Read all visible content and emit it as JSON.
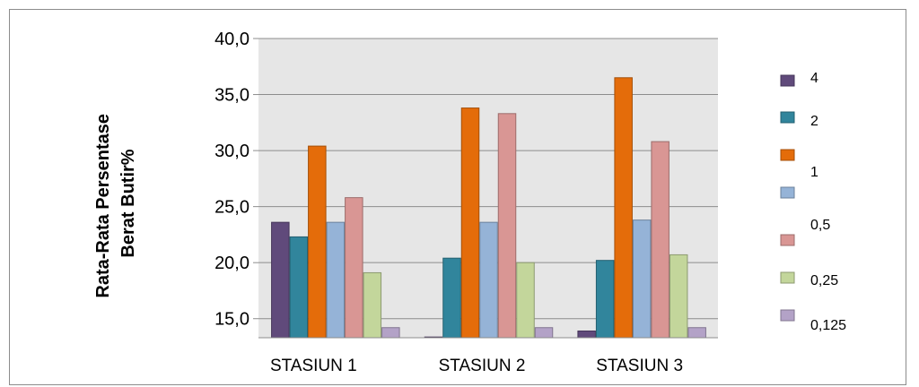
{
  "chart_data": {
    "type": "bar",
    "ylabel": "Rata-Rata Persentase Berat Butir%",
    "ylabel_lines": [
      "Rata-Rata Persentase",
      "Berat Butir%"
    ],
    "xlabel": "",
    "categories": [
      "STASIUN 1",
      "STASIUN 2",
      "STASIUN 3"
    ],
    "y_ticks": [
      {
        "value": 15,
        "label": "15,0"
      },
      {
        "value": 20,
        "label": "20,0"
      },
      {
        "value": 25,
        "label": "25,0"
      },
      {
        "value": 30,
        "label": "30,0"
      },
      {
        "value": 35,
        "label": "35,0"
      },
      {
        "value": 40,
        "label": "40,0"
      }
    ],
    "ylim": [
      13.3,
      40.0
    ],
    "grid": true,
    "legend_position": "right",
    "series": [
      {
        "name": "4",
        "color": "#604a7b",
        "values": [
          23.6,
          13.3,
          13.9
        ]
      },
      {
        "name": "2",
        "color": "#31859c",
        "values": [
          22.3,
          20.4,
          20.2
        ]
      },
      {
        "name": "1",
        "color": "#e46c0a",
        "values": [
          30.4,
          33.8,
          36.5
        ]
      },
      {
        "name": "0,5",
        "color": "#95b3d7",
        "values": [
          23.6,
          23.6,
          23.8
        ]
      },
      {
        "name": "0,25",
        "color": "#c3d69b",
        "values": [
          19.1,
          20.0,
          20.7
        ]
      },
      {
        "name": "0,125",
        "color": "#b3a2c7",
        "values": [
          14.2,
          14.2,
          14.2
        ]
      },
      {
        "name": "0,5",
        "color": "#d99694",
        "values": [
          25.8,
          33.3,
          30.8
        ]
      }
    ],
    "legend": [
      {
        "label": "4",
        "color": "#604a7b"
      },
      {
        "label": "2",
        "color": "#31859c"
      },
      {
        "label": "1",
        "color": "#e46c0a"
      },
      {
        "label": "",
        "color": "#95b3d7"
      },
      {
        "label": "0,5",
        "color": "#d99694"
      },
      {
        "label": "0,25",
        "color": "#c3d69b"
      },
      {
        "label": "0,125",
        "color": "#b3a2c7"
      }
    ],
    "plot_background": "#e6e6e6"
  }
}
